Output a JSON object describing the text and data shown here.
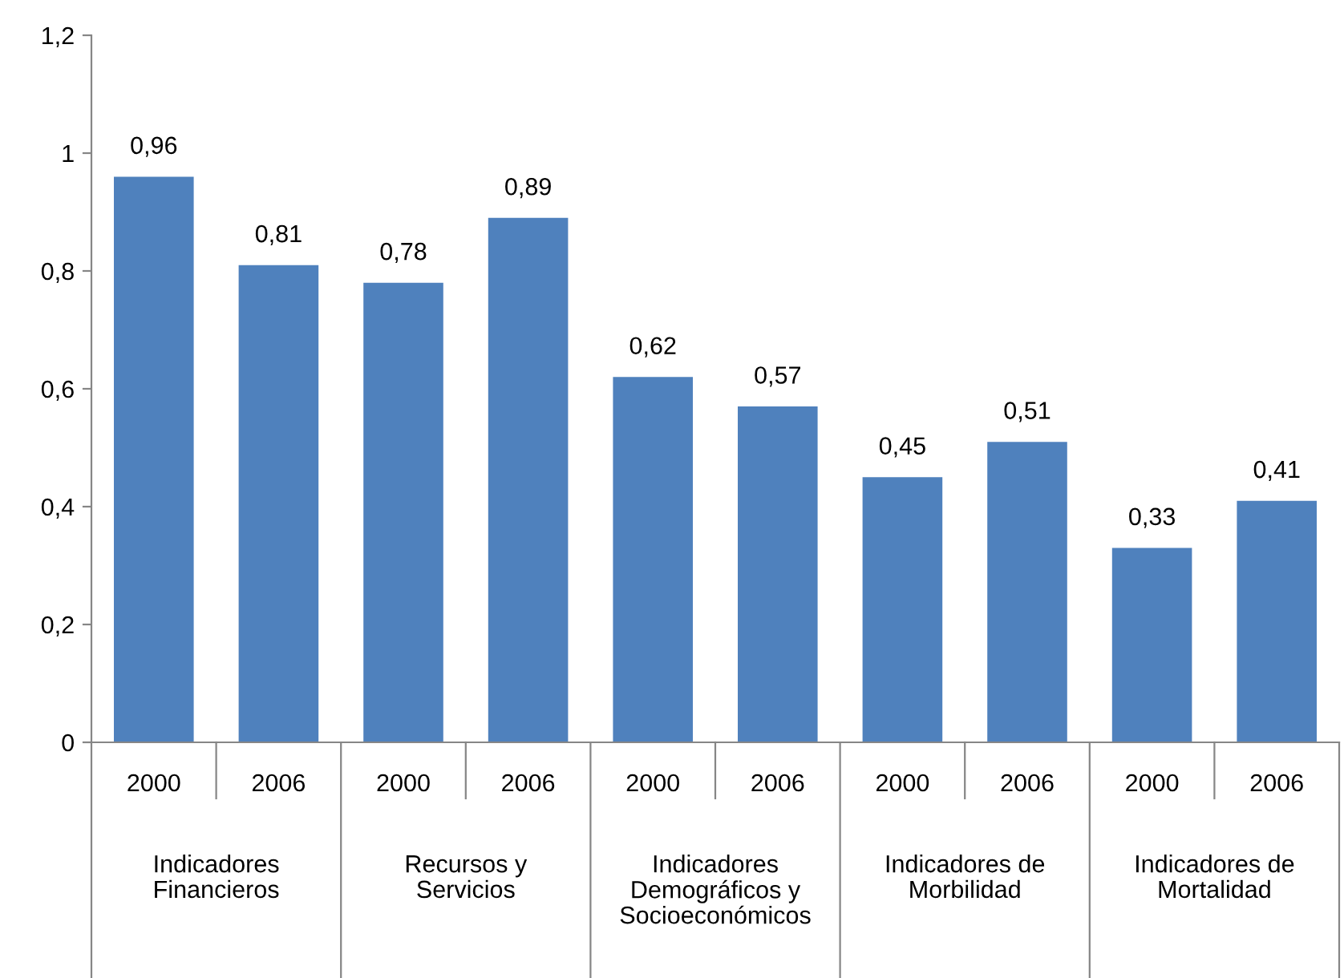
{
  "chart_data": {
    "type": "bar",
    "categories": [
      "2000",
      "2006",
      "2000",
      "2006",
      "2000",
      "2006",
      "2000",
      "2006",
      "2000",
      "2006"
    ],
    "values": [
      0.96,
      0.81,
      0.78,
      0.89,
      0.62,
      0.57,
      0.45,
      0.51,
      0.33,
      0.41
    ],
    "value_labels": [
      "0,96",
      "0,81",
      "0,78",
      "0,89",
      "0,62",
      "0,57",
      "0,45",
      "0,51",
      "0,33",
      "0,41"
    ],
    "color": "#4f81bd",
    "ylim": [
      0,
      1.2
    ],
    "yticks": [
      0,
      {
        "value": 0.2,
        "label": "0,2"
      },
      {
        "value": 0.4,
        "label": "0,4"
      },
      {
        "value": 0.6,
        "label": "0,6"
      },
      {
        "value": 0.8,
        "label": "0,8"
      },
      1,
      {
        "value": 1.2,
        "label": "1,2"
      }
    ],
    "annotations": [
      "Indicadores\nFinancieros",
      "Recursos y\nServicios",
      "Indicadores\nDemográficos y\nSocioeconómicos",
      "Indicadores de\nMorbilidad",
      "Indicadores de\nMortalidad"
    ],
    "grid": false,
    "legend": false
  }
}
